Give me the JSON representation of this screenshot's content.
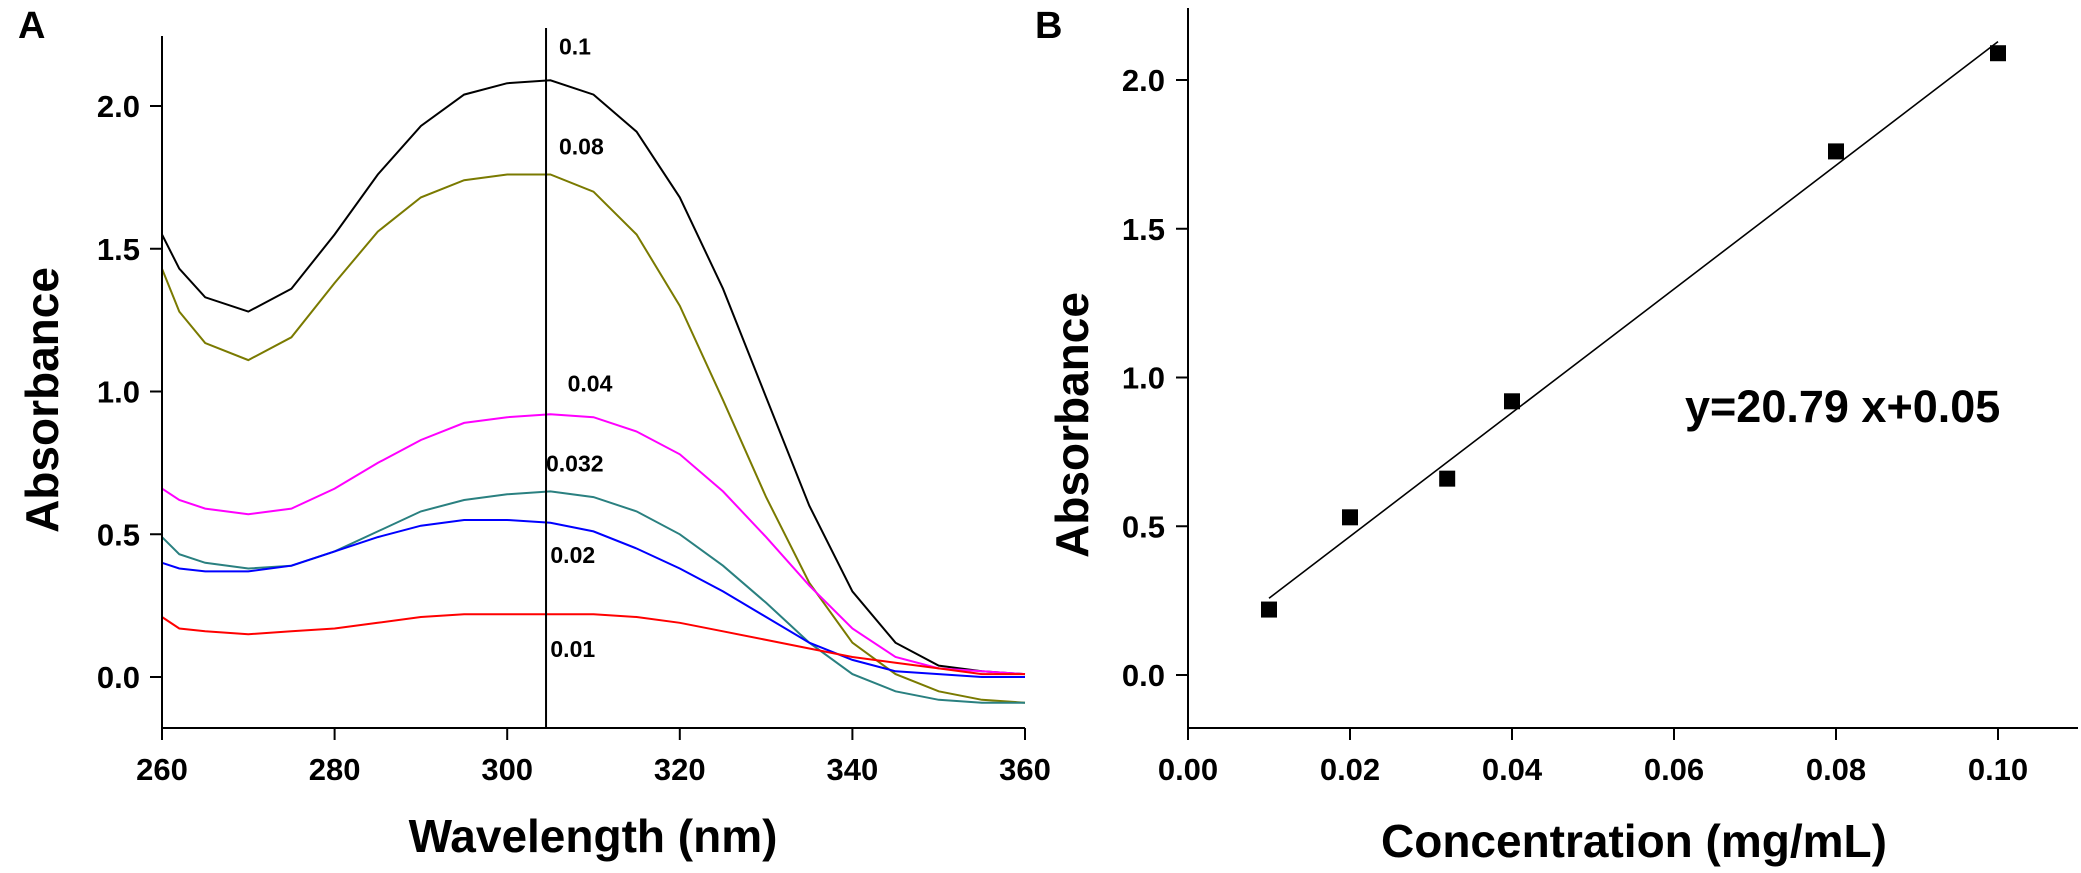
{
  "chart_data": [
    {
      "panel": "A",
      "type": "line",
      "title": "",
      "xlabel": "Wavelength (nm)",
      "ylabel": "Absorbance",
      "xlim": [
        260,
        360
      ],
      "ylim": [
        -0.2,
        2.25
      ],
      "xticks": [
        260,
        280,
        300,
        320,
        340,
        360
      ],
      "xtick_labels": [
        "260",
        "280",
        "300",
        "320",
        "340",
        "360"
      ],
      "yticks": [
        0.0,
        0.5,
        1.0,
        1.5,
        2.0
      ],
      "ytick_labels": [
        "0.0",
        "0.5",
        "1.0",
        "1.5",
        "2.0"
      ],
      "marker_line_x": 304.5,
      "x": [
        260,
        262,
        265,
        270,
        275,
        280,
        285,
        290,
        295,
        300,
        305,
        310,
        315,
        320,
        325,
        330,
        335,
        340,
        345,
        350,
        355,
        360
      ],
      "series": [
        {
          "name": "0.1",
          "color": "#000000",
          "label_x": 306,
          "label_y": 2.18,
          "values": [
            1.55,
            1.43,
            1.33,
            1.28,
            1.36,
            1.55,
            1.76,
            1.93,
            2.04,
            2.08,
            2.09,
            2.04,
            1.91,
            1.68,
            1.36,
            0.98,
            0.6,
            0.3,
            0.12,
            0.04,
            0.02,
            0.01
          ]
        },
        {
          "name": "0.08",
          "color": "#7a7a00",
          "label_x": 306,
          "label_y": 1.83,
          "values": [
            1.43,
            1.28,
            1.17,
            1.11,
            1.19,
            1.38,
            1.56,
            1.68,
            1.74,
            1.76,
            1.76,
            1.7,
            1.55,
            1.3,
            0.97,
            0.63,
            0.33,
            0.12,
            0.01,
            -0.05,
            -0.08,
            -0.09
          ]
        },
        {
          "name": "0.04",
          "color": "#ff00ff",
          "label_x": 307,
          "label_y": 1.0,
          "values": [
            0.66,
            0.62,
            0.59,
            0.57,
            0.59,
            0.66,
            0.75,
            0.83,
            0.89,
            0.91,
            0.92,
            0.91,
            0.86,
            0.78,
            0.65,
            0.49,
            0.32,
            0.17,
            0.07,
            0.03,
            0.02,
            0.01
          ]
        },
        {
          "name": "0.032",
          "color": "#2a8080",
          "label_x": 304.5,
          "label_y": 0.72,
          "values": [
            0.49,
            0.43,
            0.4,
            0.38,
            0.39,
            0.44,
            0.51,
            0.58,
            0.62,
            0.64,
            0.65,
            0.63,
            0.58,
            0.5,
            0.39,
            0.26,
            0.12,
            0.01,
            -0.05,
            -0.08,
            -0.09,
            -0.09
          ]
        },
        {
          "name": "0.02",
          "color": "#0000ff",
          "label_x": 305,
          "label_y": 0.4,
          "values": [
            0.4,
            0.38,
            0.37,
            0.37,
            0.39,
            0.44,
            0.49,
            0.53,
            0.55,
            0.55,
            0.54,
            0.51,
            0.45,
            0.38,
            0.3,
            0.21,
            0.12,
            0.06,
            0.02,
            0.01,
            0.0,
            0.0
          ]
        },
        {
          "name": "0.01",
          "color": "#ff0000",
          "label_x": 305,
          "label_y": 0.07,
          "values": [
            0.21,
            0.17,
            0.16,
            0.15,
            0.16,
            0.17,
            0.19,
            0.21,
            0.22,
            0.22,
            0.22,
            0.22,
            0.21,
            0.19,
            0.16,
            0.13,
            0.1,
            0.07,
            0.05,
            0.03,
            0.01,
            0.01
          ]
        }
      ]
    },
    {
      "panel": "B",
      "type": "scatter",
      "title": "",
      "xlabel": "Concentration (mg/mL)",
      "ylabel": "Absorbance",
      "xlim": [
        0.0,
        0.11
      ],
      "ylim": [
        -0.2,
        2.25
      ],
      "xticks": [
        0.0,
        0.02,
        0.04,
        0.06,
        0.08,
        0.1
      ],
      "xtick_labels": [
        "0.00",
        "0.02",
        "0.04",
        "0.06",
        "0.08",
        "0.10"
      ],
      "yticks": [
        0.0,
        0.5,
        1.0,
        1.5,
        2.0
      ],
      "ytick_labels": [
        "0.0",
        "0.5",
        "1.0",
        "1.5",
        "2.0"
      ],
      "points": [
        {
          "x": 0.01,
          "y": 0.22
        },
        {
          "x": 0.02,
          "y": 0.53
        },
        {
          "x": 0.032,
          "y": 0.66
        },
        {
          "x": 0.04,
          "y": 0.92
        },
        {
          "x": 0.08,
          "y": 1.76
        },
        {
          "x": 0.1,
          "y": 2.09
        }
      ],
      "fit": {
        "slope": 20.79,
        "intercept": 0.05,
        "x_range": [
          0.01,
          0.1
        ]
      },
      "equation": "y=20.79 x+0.05"
    }
  ]
}
